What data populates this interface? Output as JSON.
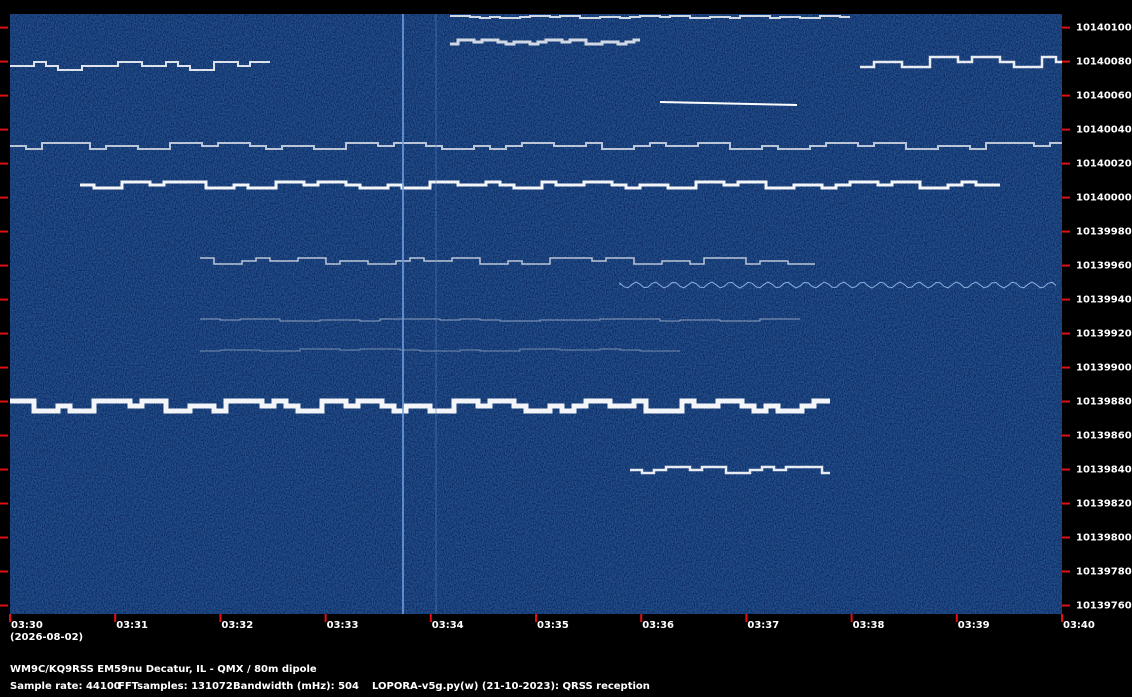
{
  "chart_data": {
    "type": "spectrogram",
    "x_labels": [
      "03:30",
      "03:31",
      "03:32",
      "03:33",
      "03:34",
      "03:35",
      "03:36",
      "03:37",
      "03:38",
      "03:39",
      "03:40"
    ],
    "date_label": "(2026-08-02)",
    "ylim": [
      10139755,
      10140108
    ],
    "yticks": [
      10140100,
      10140080,
      10140060,
      10140040,
      10140020,
      10140000,
      10139980,
      10139960,
      10139940,
      10139920,
      10139900,
      10139880,
      10139860,
      10139840,
      10139820,
      10139800,
      10139780,
      10139760
    ],
    "tick_color": "#e01010",
    "station": "WM9C/KQ9RSS EM59nu Decatur, IL - QMX / 80m dipole",
    "sample_rate": "Sample rate: 44100",
    "fft_samples": "FFTsamples: 131072",
    "bandwidth": "Bandwidth (mHz): 504",
    "software": "LOPORA-v5g.py(w) (21-10-2023): QRSS reception"
  }
}
